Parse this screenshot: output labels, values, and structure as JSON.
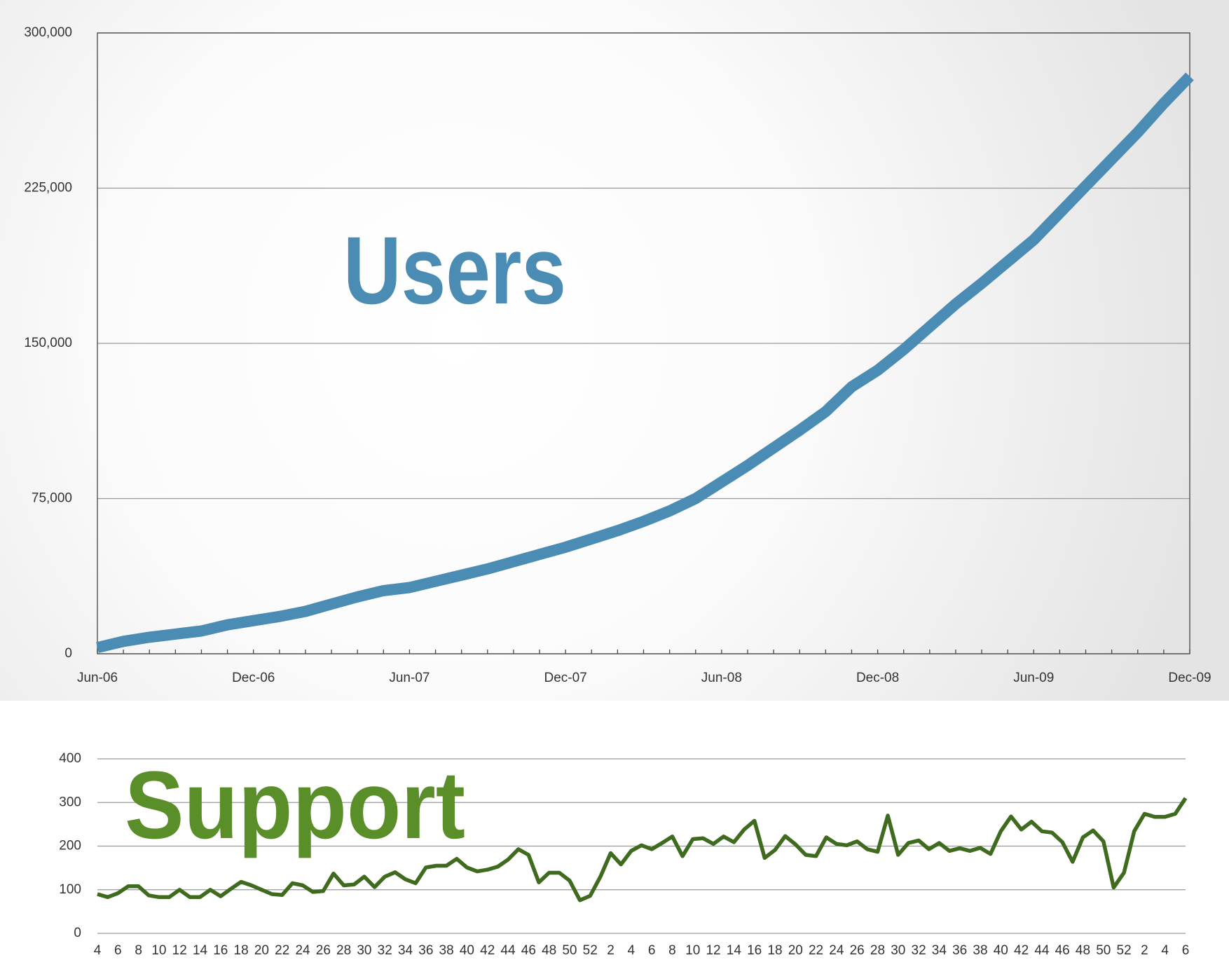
{
  "chart_data": [
    {
      "type": "line",
      "title": "Users",
      "categories": [
        "Jun-06",
        null,
        null,
        null,
        null,
        null,
        "Dec-06",
        null,
        null,
        null,
        null,
        null,
        "Jun-07",
        null,
        null,
        null,
        null,
        null,
        "Dec-07",
        null,
        null,
        null,
        null,
        null,
        "Jun-08",
        null,
        null,
        null,
        null,
        null,
        "Dec-08",
        null,
        null,
        null,
        null,
        null,
        "Jun-09",
        null,
        null,
        null,
        null,
        null,
        "Dec-09"
      ],
      "series": [
        {
          "name": "Users",
          "color": "#4a8cb4",
          "values": [
            3000,
            6000,
            8000,
            9500,
            11000,
            14000,
            16000,
            18000,
            20500,
            24000,
            27500,
            30500,
            32000,
            35000,
            38000,
            41000,
            44500,
            48000,
            51500,
            55500,
            59500,
            64000,
            69000,
            75000,
            83000,
            91000,
            99500,
            108000,
            117000,
            129000,
            137000,
            147000,
            158000,
            169000,
            179000,
            189500,
            200000,
            213000,
            226000,
            239000,
            252000,
            266000,
            279000
          ]
        }
      ],
      "ylim": [
        0,
        300000
      ],
      "yticks": [
        0,
        {
          "value": 75000,
          "label": "75,000"
        },
        {
          "value": 150000,
          "label": "150,000"
        },
        {
          "value": 225000,
          "label": "225,000"
        },
        {
          "value": 300000,
          "label": "300,000"
        }
      ],
      "grid": true
    },
    {
      "type": "line",
      "title": "Support",
      "categories": [
        "4",
        null,
        "6",
        null,
        "8",
        null,
        "10",
        null,
        "12",
        null,
        "14",
        null,
        "16",
        null,
        "18",
        null,
        "20",
        null,
        "22",
        null,
        "24",
        null,
        "26",
        null,
        "28",
        null,
        "30",
        null,
        "32",
        null,
        "34",
        null,
        "36",
        null,
        "38",
        null,
        "40",
        null,
        "42",
        null,
        "44",
        null,
        "46",
        null,
        "48",
        null,
        "50",
        null,
        "52",
        null,
        "2",
        null,
        "4",
        null,
        "6",
        null,
        "8",
        null,
        "10",
        null,
        "12",
        null,
        "14",
        null,
        "16",
        null,
        "18",
        null,
        "20",
        null,
        "22",
        null,
        "24",
        null,
        "26",
        null,
        "28",
        null,
        "30",
        null,
        "32",
        null,
        "34",
        null,
        "36",
        null,
        "38",
        null,
        "40",
        null,
        "42",
        null,
        "44",
        null,
        "46",
        null,
        "48",
        null,
        "50",
        null,
        "52",
        null,
        "2",
        null,
        "4",
        null,
        "6"
      ],
      "series": [
        {
          "name": "Support",
          "color": "#3f6b1e",
          "values": [
            90,
            83,
            92,
            108,
            108,
            87,
            83,
            83,
            100,
            83,
            83,
            100,
            85,
            102,
            118,
            110,
            100,
            90,
            88,
            115,
            110,
            95,
            97,
            137,
            110,
            112,
            130,
            106,
            130,
            140,
            124,
            115,
            151,
            155,
            155,
            171,
            151,
            142,
            146,
            153,
            169,
            193,
            180,
            117,
            139,
            139,
            121,
            76,
            86,
            130,
            184,
            158,
            189,
            202,
            193,
            207,
            222,
            177,
            216,
            218,
            205,
            222,
            209,
            238,
            258,
            173,
            191,
            223,
            204,
            180,
            177,
            220,
            205,
            202,
            211,
            193,
            187,
            270,
            180,
            207,
            213,
            193,
            207,
            189,
            195,
            189,
            196,
            182,
            234,
            268,
            238,
            256,
            234,
            231,
            209,
            164,
            220,
            236,
            211,
            105,
            139,
            234,
            274,
            267,
            267,
            274,
            310
          ]
        }
      ],
      "ylim": [
        0,
        400
      ],
      "yticks": [
        0,
        100,
        200,
        300,
        400
      ],
      "grid": true
    }
  ]
}
